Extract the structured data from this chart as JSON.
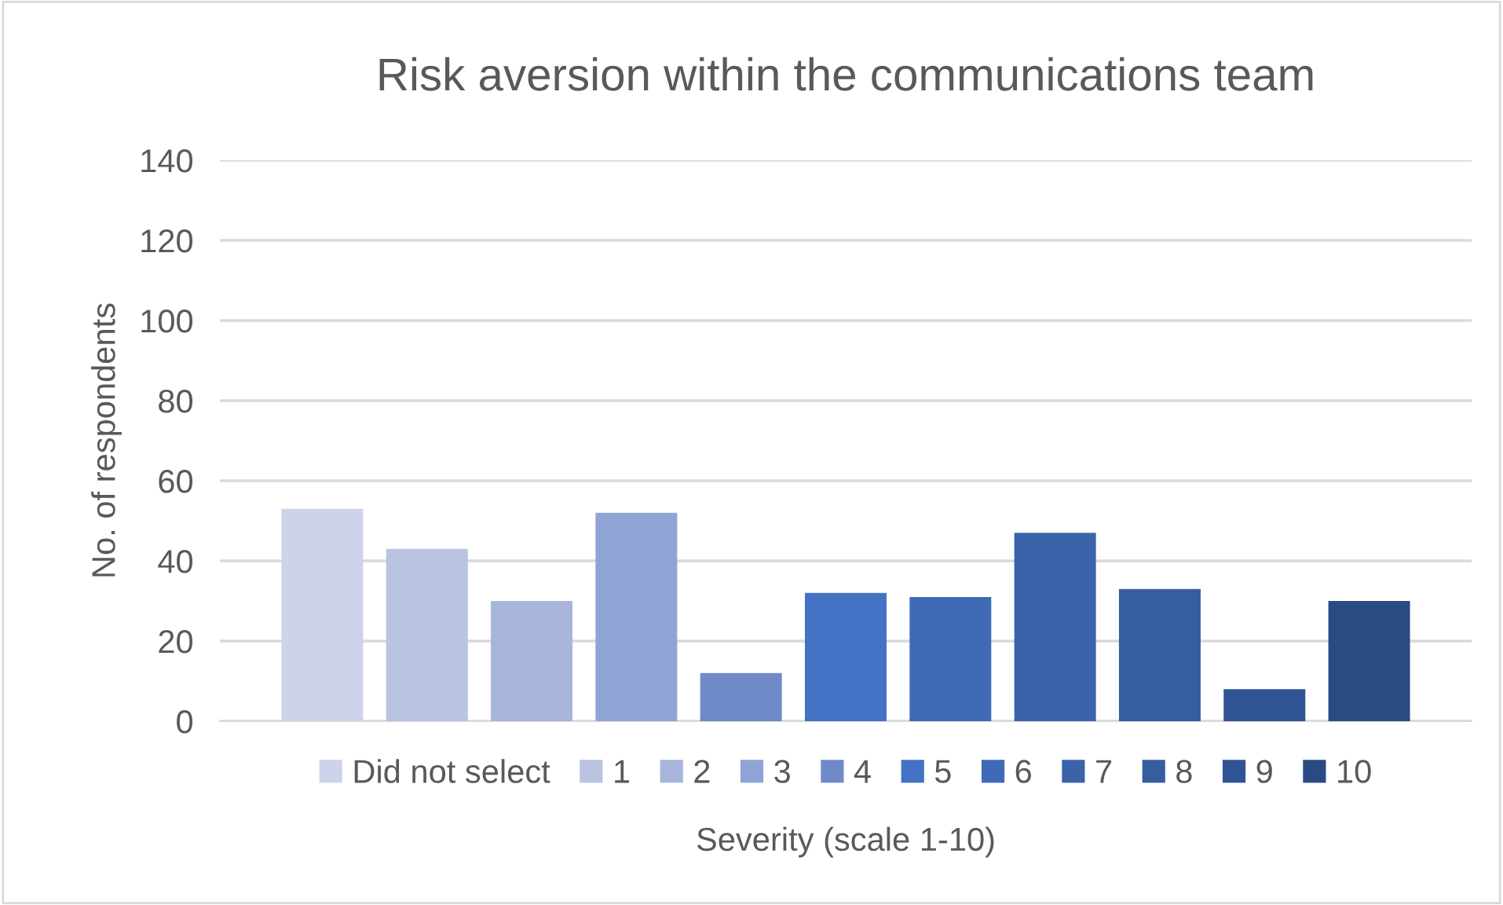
{
  "chart_data": {
    "type": "bar",
    "title": "Risk aversion within the communications team",
    "xlabel": "Severity (scale 1-10)",
    "ylabel": "No. of respondents",
    "categories": [
      null
    ],
    "series": [
      {
        "name": "Did not select",
        "color": "#cdd3e8",
        "values": [
          53
        ]
      },
      {
        "name": "1",
        "color": "#b9c3e2",
        "values": [
          43
        ]
      },
      {
        "name": "2",
        "color": "#a8b5da",
        "values": [
          30
        ]
      },
      {
        "name": "3",
        "color": "#8fa3d4",
        "values": [
          52
        ]
      },
      {
        "name": "4",
        "color": "#6f8ac9",
        "values": [
          12
        ]
      },
      {
        "name": "5",
        "color": "#4472c4",
        "values": [
          32
        ]
      },
      {
        "name": "6",
        "color": "#3f6ab6",
        "values": [
          31
        ]
      },
      {
        "name": "7",
        "color": "#3b63aa",
        "values": [
          47
        ]
      },
      {
        "name": "8",
        "color": "#365d9f",
        "values": [
          33
        ]
      },
      {
        "name": "9",
        "color": "#305393",
        "values": [
          8
        ]
      },
      {
        "name": "10",
        "color": "#2a4a84",
        "values": [
          30
        ]
      }
    ],
    "ylim": [
      0,
      140
    ],
    "yticks": [
      0,
      20,
      40,
      60,
      80,
      100,
      120,
      140
    ],
    "grid": "y",
    "legend": "bottom"
  }
}
